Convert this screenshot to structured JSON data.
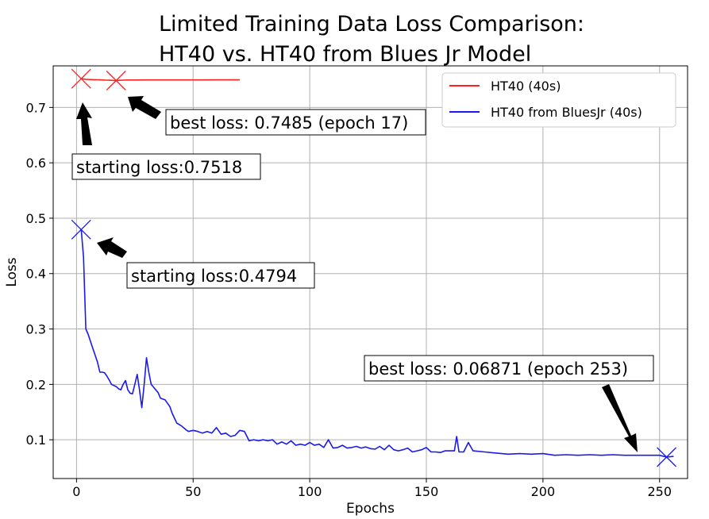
{
  "title_lines": [
    "Limited Training Data Loss Comparison:",
    "HT40 vs. HT40 from Blues Jr Model"
  ],
  "chart_data": {
    "type": "line",
    "xlabel": "Epochs",
    "ylabel": "Loss",
    "xlim": [
      -10,
      262
    ],
    "ylim": [
      0.03,
      0.775
    ],
    "xticks": [
      0,
      50,
      100,
      150,
      200,
      250
    ],
    "yticks": [
      0.1,
      0.2,
      0.3,
      0.4,
      0.5,
      0.6,
      0.7
    ],
    "grid": true,
    "legend_position": "top-right",
    "series": [
      {
        "name": "HT40 (40s)",
        "color": "#ff2020",
        "x": [
          2,
          3,
          4,
          5,
          6,
          7,
          8,
          9,
          10,
          11,
          12,
          13,
          14,
          15,
          16,
          17,
          18,
          19,
          20,
          22,
          25,
          30,
          35,
          40,
          45,
          50,
          55,
          60,
          65,
          70
        ],
        "y": [
          0.7518,
          0.7512,
          0.7508,
          0.7505,
          0.7503,
          0.7501,
          0.75,
          0.7499,
          0.7498,
          0.7496,
          0.7494,
          0.7492,
          0.749,
          0.7489,
          0.7487,
          0.7485,
          0.7488,
          0.749,
          0.7492,
          0.7495,
          0.7495,
          0.7496,
          0.7496,
          0.7497,
          0.7497,
          0.7497,
          0.7497,
          0.7498,
          0.7498,
          0.7498
        ],
        "best": {
          "x": 17,
          "y": 0.7485
        },
        "start": {
          "x": 2,
          "y": 0.7518
        }
      },
      {
        "name": "HT40 from BluesJr (40s)",
        "color": "#1a1aee",
        "x": [
          2,
          3,
          4,
          5,
          7,
          9,
          10,
          11,
          12,
          13,
          14,
          15,
          17,
          18,
          19,
          20,
          21,
          22,
          23,
          24,
          25,
          26,
          27,
          28,
          29,
          30,
          31,
          32,
          33,
          35,
          36,
          38,
          40,
          41,
          43,
          45,
          47,
          48,
          50,
          52,
          54,
          56,
          58,
          60,
          62,
          64,
          66,
          68,
          70,
          72,
          74,
          76,
          78,
          80,
          82,
          84,
          86,
          88,
          90,
          92,
          94,
          96,
          98,
          100,
          102,
          104,
          106,
          108,
          110,
          112,
          114,
          116,
          118,
          120,
          122,
          124,
          126,
          128,
          130,
          132,
          134,
          136,
          138,
          140,
          142,
          144,
          146,
          148,
          150,
          152,
          154,
          156,
          158,
          160,
          162,
          163,
          164,
          166,
          168,
          170,
          175,
          180,
          185,
          190,
          195,
          200,
          205,
          210,
          215,
          220,
          225,
          230,
          235,
          240,
          245,
          250,
          253,
          256
        ],
        "y": [
          0.4794,
          0.43,
          0.3,
          0.29,
          0.265,
          0.24,
          0.222,
          0.222,
          0.221,
          0.215,
          0.208,
          0.2,
          0.196,
          0.192,
          0.19,
          0.2,
          0.207,
          0.19,
          0.184,
          0.183,
          0.2,
          0.218,
          0.19,
          0.158,
          0.2,
          0.248,
          0.222,
          0.2,
          0.195,
          0.185,
          0.175,
          0.172,
          0.16,
          0.148,
          0.13,
          0.125,
          0.118,
          0.115,
          0.117,
          0.115,
          0.112,
          0.115,
          0.112,
          0.122,
          0.11,
          0.112,
          0.106,
          0.108,
          0.117,
          0.115,
          0.098,
          0.1,
          0.098,
          0.1,
          0.098,
          0.1,
          0.092,
          0.096,
          0.092,
          0.098,
          0.09,
          0.092,
          0.09,
          0.095,
          0.09,
          0.092,
          0.086,
          0.1,
          0.085,
          0.086,
          0.09,
          0.085,
          0.086,
          0.088,
          0.085,
          0.087,
          0.084,
          0.083,
          0.088,
          0.082,
          0.09,
          0.082,
          0.08,
          0.082,
          0.085,
          0.078,
          0.08,
          0.082,
          0.086,
          0.078,
          0.078,
          0.077,
          0.08,
          0.08,
          0.08,
          0.106,
          0.078,
          0.078,
          0.095,
          0.08,
          0.078,
          0.076,
          0.074,
          0.075,
          0.074,
          0.075,
          0.072,
          0.073,
          0.072,
          0.073,
          0.072,
          0.073,
          0.072,
          0.072,
          0.072,
          0.072,
          0.0687,
          0.07
        ],
        "best": {
          "x": 253,
          "y": 0.06871
        },
        "start": {
          "x": 2,
          "y": 0.4794
        }
      }
    ],
    "annotations": [
      {
        "text": "best loss: 0.7485 (epoch 17)"
      },
      {
        "text": "starting loss:0.7518"
      },
      {
        "text": "starting loss:0.4794"
      },
      {
        "text": "best loss: 0.06871 (epoch 253)"
      }
    ]
  }
}
